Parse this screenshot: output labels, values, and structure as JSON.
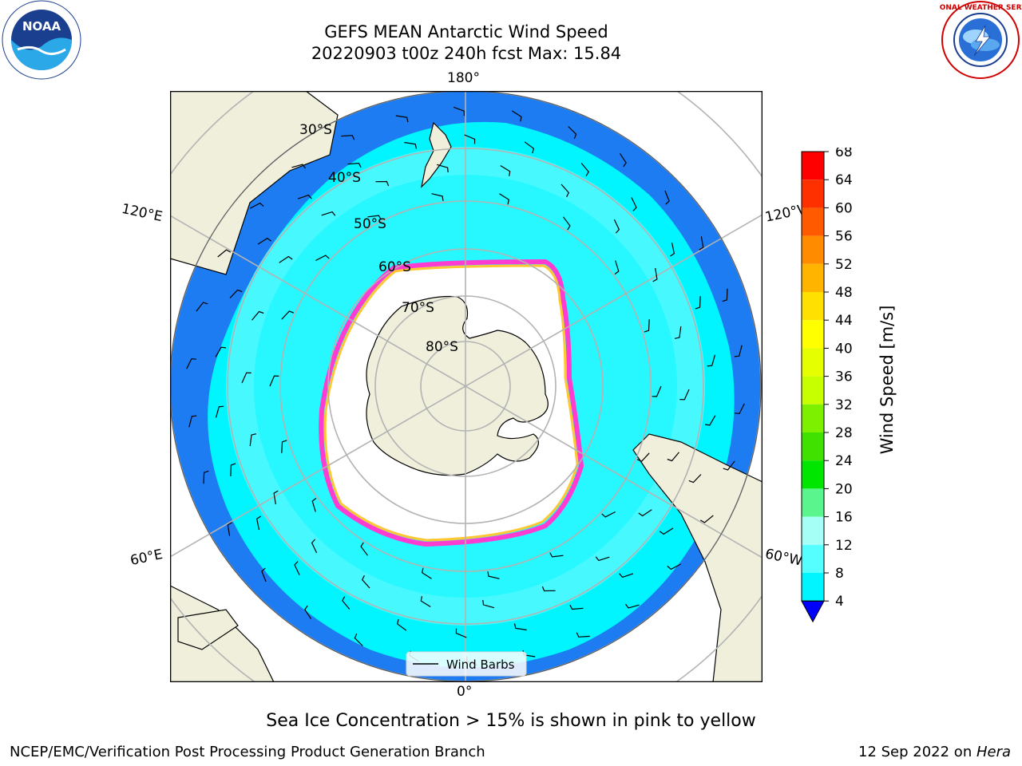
{
  "header": {
    "title_line1": "GEFS MEAN Antarctic Wind Speed",
    "title_line2": "20220903 t00z 240h fcst   Max: 15.84"
  },
  "logos": {
    "left": {
      "icon": "noaa-logo",
      "text": "NOAA"
    },
    "right": {
      "icon": "nws-logo",
      "text": "NATIONAL WEATHER SERVICE"
    }
  },
  "map": {
    "projection": "south polar stereographic",
    "lon_labels": {
      "top": "180°",
      "bottom": "0°",
      "left_upper": "120°E",
      "left_lower": "60°E",
      "right_upper": "120°W",
      "right_lower": "60°W"
    },
    "lat_labels": [
      "30°S",
      "40°S",
      "50°S",
      "60°S",
      "70°S",
      "80°S"
    ],
    "legend": {
      "label": "Wind Barbs"
    },
    "colors": {
      "land": "#efefdc",
      "ocean_low": "#1e7cf2",
      "ocean_mid": "#00f5ff",
      "ocean_high": "#4ff9ff",
      "ice_edge": "#ff3cd2",
      "ice_inner": "#ffc832"
    }
  },
  "colorbar": {
    "label": "Wind Speed [m/s]",
    "ticks": [
      "68",
      "64",
      "60",
      "56",
      "52",
      "48",
      "44",
      "40",
      "36",
      "32",
      "28",
      "24",
      "20",
      "16",
      "12",
      "8",
      "4"
    ],
    "colors": [
      "#ff0000",
      "#ff3000",
      "#ff5a00",
      "#ff8c00",
      "#ffb400",
      "#ffe000",
      "#ffff00",
      "#e6ff00",
      "#c8ff00",
      "#7df000",
      "#40e000",
      "#00e600",
      "#5af58c",
      "#a6fff6",
      "#55ffff",
      "#00f5ff",
      "#1e7cf2"
    ],
    "under_color": "#0000ff"
  },
  "caption": "Sea Ice Concentration > 15% is shown in pink to yellow",
  "footer": {
    "left": "NCEP/EMC/Verification Post Processing Product Generation Branch",
    "right_date": "12 Sep 2022 on ",
    "right_host": "Hera"
  }
}
